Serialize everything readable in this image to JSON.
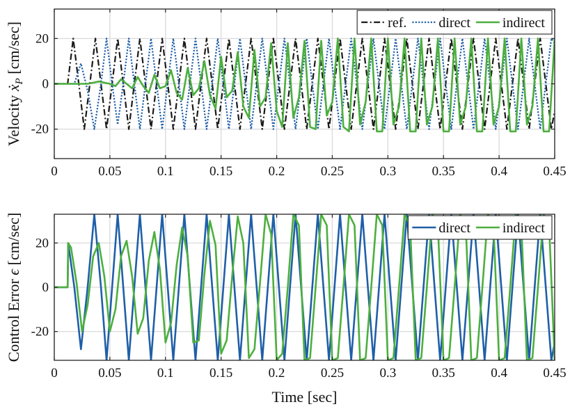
{
  "chart_data": [
    {
      "type": "line",
      "xlabel": "",
      "ylabel": "Velocity ẋ_P [cm/sec]",
      "ylabel_main": "Velocity ",
      "ylabel_symbol": "ẋ",
      "ylabel_sub": "P",
      "ylabel_unit": " [cm/sec]",
      "xlim": [
        0,
        0.45
      ],
      "ylim": [
        -33,
        33
      ],
      "xticks": [
        0,
        0.05,
        0.1,
        0.15,
        0.2,
        0.25,
        0.3,
        0.35,
        0.4,
        0.45
      ],
      "xtick_labels": [
        "0",
        "0.05",
        "0.1",
        "0.15",
        "0.2",
        "0.25",
        "0.3",
        "0.35",
        "0.4",
        "0.45"
      ],
      "yticks": [
        -20,
        0,
        20
      ],
      "ytick_labels": [
        "-20",
        "0",
        "20"
      ],
      "grid": true,
      "legend": "top-right",
      "series": [
        {
          "name": "ref.",
          "color": "#1a1a1a",
          "style": "dashdot",
          "x": [
            0,
            0.012,
            0.017,
            0.022,
            0.027,
            0.032,
            0.037,
            0.042,
            0.047,
            0.052,
            0.057,
            0.062,
            0.067,
            0.072,
            0.077,
            0.082,
            0.087,
            0.092,
            0.097,
            0.102,
            0.107,
            0.112,
            0.117,
            0.122,
            0.127,
            0.132,
            0.137,
            0.142,
            0.147,
            0.152,
            0.157,
            0.162,
            0.167,
            0.172,
            0.177,
            0.182,
            0.187,
            0.192,
            0.197,
            0.202,
            0.207,
            0.212,
            0.217,
            0.222,
            0.227,
            0.232,
            0.237,
            0.242,
            0.247,
            0.252,
            0.257,
            0.262,
            0.267,
            0.272,
            0.277,
            0.282,
            0.287,
            0.292,
            0.297,
            0.302,
            0.307,
            0.312,
            0.317,
            0.322,
            0.327,
            0.332,
            0.337,
            0.342,
            0.347,
            0.352,
            0.357,
            0.362,
            0.367,
            0.372,
            0.377,
            0.382,
            0.387,
            0.392,
            0.397,
            0.402,
            0.407,
            0.412,
            0.417,
            0.422,
            0.427,
            0.432,
            0.437,
            0.442,
            0.447,
            0.45
          ],
          "y": [
            0,
            0,
            20,
            0,
            -20,
            0,
            20,
            0,
            -20,
            0,
            20,
            0,
            -20,
            0,
            20,
            0,
            -20,
            0,
            20,
            0,
            -20,
            0,
            20,
            0,
            -20,
            0,
            20,
            0,
            -20,
            0,
            20,
            0,
            -20,
            0,
            20,
            0,
            -20,
            0,
            20,
            0,
            -20,
            0,
            20,
            0,
            -20,
            0,
            20,
            0,
            -20,
            0,
            20,
            0,
            -20,
            0,
            20,
            0,
            -20,
            0,
            20,
            0,
            -20,
            0,
            20,
            0,
            -20,
            0,
            20,
            0,
            -20,
            0,
            20,
            0,
            -20,
            0,
            20,
            0,
            -20,
            0,
            20,
            0,
            -20,
            0,
            20,
            0,
            -20,
            0,
            20,
            0,
            -20,
            -12
          ]
        },
        {
          "name": "direct",
          "color": "#1f5fa8",
          "style": "dotted",
          "x": [
            0,
            0.018,
            0.024,
            0.03,
            0.036,
            0.042,
            0.047,
            0.052,
            0.057,
            0.062,
            0.067,
            0.072,
            0.077,
            0.082,
            0.087,
            0.092,
            0.097,
            0.102,
            0.107,
            0.112,
            0.117,
            0.122,
            0.127,
            0.132,
            0.137,
            0.142,
            0.147,
            0.152,
            0.157,
            0.162,
            0.167,
            0.172,
            0.177,
            0.182,
            0.187,
            0.192,
            0.197,
            0.202,
            0.207,
            0.212,
            0.217,
            0.222,
            0.227,
            0.232,
            0.237,
            0.242,
            0.247,
            0.252,
            0.257,
            0.262,
            0.267,
            0.272,
            0.277,
            0.282,
            0.287,
            0.292,
            0.297,
            0.302,
            0.307,
            0.312,
            0.317,
            0.322,
            0.327,
            0.332,
            0.337,
            0.342,
            0.347,
            0.352,
            0.357,
            0.362,
            0.367,
            0.372,
            0.377,
            0.382,
            0.387,
            0.392,
            0.397,
            0.402,
            0.407,
            0.412,
            0.417,
            0.422,
            0.427,
            0.432,
            0.437,
            0.442,
            0.447,
            0.45
          ],
          "y": [
            0,
            0,
            9,
            -3,
            -20,
            0,
            20,
            0,
            -18,
            0,
            20,
            0,
            -20,
            0,
            20,
            0,
            -20,
            0,
            20,
            0,
            -20,
            0,
            20,
            0,
            -20,
            0,
            20,
            0,
            -20,
            0,
            20,
            0,
            -20,
            0,
            20,
            0,
            -20,
            0,
            20,
            0,
            -20,
            0,
            20,
            0,
            -20,
            0,
            20,
            0,
            -20,
            0,
            20,
            0,
            -20,
            0,
            20,
            0,
            -20,
            0,
            20,
            0,
            -20,
            0,
            20,
            0,
            -20,
            0,
            20,
            0,
            -20,
            0,
            20,
            0,
            -20,
            0,
            20,
            0,
            -20,
            0,
            20,
            0,
            -20,
            0,
            20,
            0,
            -20,
            0,
            20,
            18
          ]
        },
        {
          "name": "indirect",
          "color": "#4caf3e",
          "style": "solid",
          "x": [
            0,
            0.02,
            0.03,
            0.04,
            0.05,
            0.055,
            0.06,
            0.065,
            0.07,
            0.075,
            0.08,
            0.085,
            0.09,
            0.095,
            0.1,
            0.105,
            0.11,
            0.115,
            0.12,
            0.125,
            0.13,
            0.135,
            0.14,
            0.145,
            0.15,
            0.155,
            0.16,
            0.165,
            0.17,
            0.175,
            0.18,
            0.185,
            0.19,
            0.195,
            0.2,
            0.205,
            0.21,
            0.215,
            0.22,
            0.225,
            0.23,
            0.235,
            0.24,
            0.245,
            0.25,
            0.255,
            0.26,
            0.265,
            0.27,
            0.275,
            0.28,
            0.285,
            0.29,
            0.295,
            0.3,
            0.305,
            0.31,
            0.315,
            0.32,
            0.325,
            0.33,
            0.335,
            0.34,
            0.345,
            0.35,
            0.355,
            0.36,
            0.365,
            0.37,
            0.375,
            0.38,
            0.385,
            0.39,
            0.395,
            0.4,
            0.405,
            0.41,
            0.415,
            0.42,
            0.425,
            0.43,
            0.435,
            0.44,
            0.445,
            0.45
          ],
          "y": [
            0,
            0,
            0,
            1,
            0,
            -1,
            2,
            0,
            -2,
            3,
            -1,
            -4,
            4,
            -2,
            -1,
            6,
            -4,
            -7,
            7,
            -5,
            -2,
            10,
            -5,
            -11,
            12,
            -6,
            -3,
            14,
            -10,
            -15,
            15,
            -10,
            -6,
            18,
            -12,
            -19,
            18,
            -15,
            -6,
            19,
            -19,
            -20,
            19,
            -14,
            -8,
            20,
            -19,
            -21,
            20,
            -18,
            -8,
            20,
            -21,
            -21,
            20,
            -18,
            -10,
            20,
            -21,
            -21,
            20,
            -18,
            -10,
            20,
            -21,
            -21,
            20,
            -18,
            -10,
            20,
            -21,
            -21,
            20,
            -18,
            -10,
            20,
            -21,
            -21,
            20,
            -18,
            -10,
            20,
            -21,
            -21,
            20
          ]
        }
      ]
    },
    {
      "type": "line",
      "xlabel": "Time [sec]",
      "ylabel": "Control Error ϵ [cm/sec]",
      "ylabel_main": "Control Error ",
      "ylabel_symbol": "ϵ",
      "ylabel_sub": "",
      "ylabel_unit": " [cm/sec]",
      "xlim": [
        0,
        0.45
      ],
      "ylim": [
        -33,
        33
      ],
      "xticks": [
        0,
        0.05,
        0.1,
        0.15,
        0.2,
        0.25,
        0.3,
        0.35,
        0.4,
        0.45
      ],
      "xtick_labels": [
        "0",
        "0.05",
        "0.1",
        "0.15",
        "0.2",
        "0.25",
        "0.3",
        "0.35",
        "0.4",
        "0.45"
      ],
      "yticks": [
        -20,
        0,
        20
      ],
      "ytick_labels": [
        "-20",
        "0",
        "20"
      ],
      "grid": true,
      "legend": "top-right",
      "series": [
        {
          "name": "direct",
          "color": "#1f5fa8",
          "style": "solid",
          "x": [
            0,
            0.012,
            0.0125,
            0.018,
            0.024,
            0.03,
            0.036,
            0.042,
            0.047,
            0.052,
            0.057,
            0.062,
            0.067,
            0.072,
            0.077,
            0.082,
            0.087,
            0.092,
            0.097,
            0.102,
            0.107,
            0.112,
            0.117,
            0.122,
            0.127,
            0.132,
            0.137,
            0.142,
            0.147,
            0.152,
            0.157,
            0.162,
            0.167,
            0.172,
            0.177,
            0.182,
            0.187,
            0.192,
            0.197,
            0.202,
            0.207,
            0.212,
            0.217,
            0.222,
            0.227,
            0.232,
            0.237,
            0.242,
            0.247,
            0.252,
            0.257,
            0.262,
            0.267,
            0.272,
            0.277,
            0.282,
            0.287,
            0.292,
            0.297,
            0.302,
            0.307,
            0.312,
            0.317,
            0.322,
            0.327,
            0.332,
            0.337,
            0.342,
            0.347,
            0.352,
            0.357,
            0.362,
            0.367,
            0.372,
            0.377,
            0.382,
            0.387,
            0.392,
            0.397,
            0.402,
            0.407,
            0.412,
            0.417,
            0.422,
            0.427,
            0.432,
            0.437,
            0.442,
            0.447,
            0.45
          ],
          "y": [
            0,
            0,
            20,
            0,
            -28,
            0,
            33,
            0,
            -33,
            0,
            33,
            0,
            -33,
            0,
            33,
            0,
            -33,
            0,
            33,
            0,
            -33,
            0,
            33,
            0,
            -33,
            0,
            33,
            0,
            -33,
            0,
            33,
            0,
            -33,
            0,
            33,
            0,
            -33,
            0,
            33,
            0,
            -33,
            0,
            33,
            0,
            -33,
            0,
            33,
            0,
            -33,
            0,
            33,
            0,
            -33,
            0,
            33,
            0,
            -33,
            0,
            33,
            0,
            -33,
            0,
            33,
            0,
            -33,
            0,
            33,
            0,
            -33,
            0,
            33,
            0,
            -33,
            0,
            33,
            0,
            -33,
            0,
            33,
            0,
            -33,
            0,
            33,
            0,
            -33,
            0,
            33,
            0,
            -33,
            -25
          ]
        },
        {
          "name": "indirect",
          "color": "#4caf3e",
          "style": "solid",
          "x": [
            0,
            0.012,
            0.0125,
            0.015,
            0.02,
            0.025,
            0.03,
            0.035,
            0.04,
            0.045,
            0.05,
            0.055,
            0.06,
            0.065,
            0.07,
            0.075,
            0.08,
            0.085,
            0.09,
            0.095,
            0.1,
            0.105,
            0.11,
            0.115,
            0.12,
            0.125,
            0.13,
            0.135,
            0.14,
            0.145,
            0.15,
            0.155,
            0.16,
            0.165,
            0.17,
            0.175,
            0.18,
            0.185,
            0.19,
            0.195,
            0.2,
            0.205,
            0.21,
            0.215,
            0.22,
            0.225,
            0.23,
            0.235,
            0.24,
            0.245,
            0.25,
            0.255,
            0.26,
            0.265,
            0.27,
            0.275,
            0.28,
            0.285,
            0.29,
            0.295,
            0.3,
            0.305,
            0.31,
            0.315,
            0.32,
            0.325,
            0.33,
            0.335,
            0.34,
            0.345,
            0.35,
            0.355,
            0.36,
            0.365,
            0.37,
            0.375,
            0.38,
            0.385,
            0.39,
            0.395,
            0.4,
            0.405,
            0.41,
            0.415,
            0.42,
            0.425,
            0.43,
            0.435,
            0.44,
            0.445,
            0.45
          ],
          "y": [
            0,
            0,
            20,
            18,
            2,
            -20,
            -8,
            14,
            20,
            5,
            -20,
            -10,
            14,
            21,
            5,
            -21,
            -14,
            12,
            25,
            8,
            -25,
            -16,
            10,
            27,
            14,
            -25,
            -24,
            6,
            30,
            19,
            -30,
            -24,
            5,
            32,
            20,
            -32,
            -28,
            2,
            33,
            24,
            -33,
            -30,
            0,
            33,
            28,
            -33,
            -32,
            0,
            33,
            28,
            -33,
            -32,
            0,
            33,
            28,
            -33,
            -32,
            0,
            33,
            28,
            -33,
            -32,
            0,
            33,
            28,
            -33,
            -32,
            0,
            33,
            28,
            -33,
            -32,
            0,
            33,
            28,
            -33,
            -32,
            0,
            33,
            28,
            -33,
            -32,
            0,
            33,
            28,
            -33,
            -32,
            0,
            33,
            28,
            -33
          ]
        }
      ]
    }
  ]
}
